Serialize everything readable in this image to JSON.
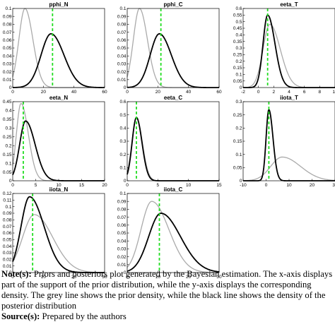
{
  "chart_data": [
    {
      "type": "line",
      "title": "pphi_N",
      "xlim": [
        0,
        60
      ],
      "ylim": [
        0,
        0.1
      ],
      "xticks": [
        0,
        20,
        40,
        60
      ],
      "yticks": [
        0,
        0.01,
        0.02,
        0.03,
        0.04,
        0.05,
        0.06,
        0.07,
        0.08,
        0.09,
        0.1
      ],
      "series": [
        {
          "color": "#aaaaaa",
          "dist": {
            "mode": 8,
            "sd": 4,
            "skew": 1.3,
            "peak": 0.1
          }
        },
        {
          "color": "#000000",
          "dist": {
            "mode": 25,
            "sd": 6.5,
            "skew": 1.3,
            "peak": 0.068
          }
        }
      ],
      "vline": 26
    },
    {
      "type": "line",
      "title": "pphi_C",
      "xlim": [
        0,
        60
      ],
      "ylim": [
        0,
        0.1
      ],
      "xticks": [
        0,
        20,
        40,
        60
      ],
      "yticks": [
        0,
        0.01,
        0.02,
        0.03,
        0.04,
        0.05,
        0.06,
        0.07,
        0.08,
        0.09,
        0.1
      ],
      "series": [
        {
          "color": "#aaaaaa",
          "dist": {
            "mode": 8,
            "sd": 4,
            "skew": 1.3,
            "peak": 0.1
          }
        },
        {
          "color": "#000000",
          "dist": {
            "mode": 21,
            "sd": 6,
            "skew": 1.3,
            "peak": 0.068
          }
        }
      ],
      "vline": 22
    },
    {
      "type": "line",
      "title": "eeta_T",
      "xlim": [
        -2,
        10
      ],
      "ylim": [
        0,
        0.6
      ],
      "xticks": [
        -2,
        0,
        2,
        4,
        6,
        8,
        10
      ],
      "yticks": [
        0,
        0.05,
        0.1,
        0.15,
        0.2,
        0.25,
        0.3,
        0.35,
        0.4,
        0.45,
        0.5,
        0.55,
        0.6
      ],
      "series": [
        {
          "color": "#aaaaaa",
          "dist": {
            "mode": 1.5,
            "sd": 0.9,
            "skew": 1.5,
            "peak": 0.48
          }
        },
        {
          "color": "#000000",
          "dist": {
            "mode": 1.2,
            "sd": 0.6,
            "skew": 1.6,
            "peak": 0.55
          }
        }
      ],
      "vline": 1.2
    },
    {
      "type": "line",
      "title": "eeta_N",
      "xlim": [
        0,
        20
      ],
      "ylim": [
        0,
        0.45
      ],
      "xticks": [
        0,
        5,
        10,
        15,
        20
      ],
      "yticks": [
        0,
        0.05,
        0.1,
        0.15,
        0.2,
        0.25,
        0.3,
        0.35,
        0.4,
        0.45
      ],
      "series": [
        {
          "color": "#aaaaaa",
          "dist": {
            "mode": 1.8,
            "sd": 1,
            "skew": 1.6,
            "peak": 0.44
          }
        },
        {
          "color": "#000000",
          "dist": {
            "mode": 2.8,
            "sd": 1.3,
            "skew": 1.6,
            "peak": 0.34
          }
        }
      ],
      "vline": 2.3
    },
    {
      "type": "line",
      "title": "eeta_C",
      "xlim": [
        0,
        15
      ],
      "ylim": [
        0,
        0.6
      ],
      "xticks": [
        0,
        5,
        10,
        15
      ],
      "yticks": [
        0,
        0.1,
        0.2,
        0.3,
        0.4,
        0.5,
        0.6
      ],
      "series": [
        {
          "color": "#aaaaaa",
          "dist": {
            "mode": 1.5,
            "sd": 0.75,
            "skew": 1.3,
            "peak": 0.48
          }
        },
        {
          "color": "#000000",
          "dist": {
            "mode": 1.5,
            "sd": 0.7,
            "skew": 1.3,
            "peak": 0.48
          }
        }
      ],
      "vline": 1.5
    },
    {
      "type": "line",
      "title": "iiota_T",
      "xlim": [
        -10,
        30
      ],
      "ylim": [
        0,
        0.3
      ],
      "xticks": [
        -10,
        0,
        10,
        20,
        30
      ],
      "yticks": [
        0,
        0.05,
        0.1,
        0.15,
        0.2,
        0.25,
        0.3
      ],
      "series": [
        {
          "color": "#aaaaaa",
          "dist": {
            "mode": 7,
            "sd": 5,
            "skew": 1.6,
            "peak": 0.09
          }
        },
        {
          "color": "#000000",
          "dist": {
            "mode": 1.2,
            "sd": 1.2,
            "skew": 1.5,
            "peak": 0.27
          }
        }
      ],
      "vline": 1.2
    },
    {
      "type": "line",
      "title": "iiota_N",
      "xlim": [
        0,
        30
      ],
      "ylim": [
        0,
        0.12
      ],
      "xticks": [
        0,
        10,
        20,
        30
      ],
      "yticks": [
        0,
        0.01,
        0.02,
        0.03,
        0.04,
        0.05,
        0.06,
        0.07,
        0.08,
        0.09,
        0.1,
        0.11,
        0.12
      ],
      "series": [
        {
          "color": "#aaaaaa",
          "dist": {
            "mode": 7,
            "sd": 3.8,
            "skew": 1.6,
            "peak": 0.088
          }
        },
        {
          "color": "#000000",
          "dist": {
            "mode": 5.5,
            "sd": 2.8,
            "skew": 1.7,
            "peak": 0.115
          }
        }
      ],
      "vline": 6.5
    },
    {
      "type": "line",
      "title": "iiota_C",
      "xlim": [
        0,
        30
      ],
      "ylim": [
        0,
        0.1
      ],
      "xticks": [
        0,
        10,
        20,
        30
      ],
      "yticks": [
        0,
        0.01,
        0.02,
        0.03,
        0.04,
        0.05,
        0.06,
        0.07,
        0.08,
        0.09,
        0.1
      ],
      "series": [
        {
          "color": "#aaaaaa",
          "dist": {
            "mode": 8,
            "sd": 3.5,
            "skew": 1.6,
            "peak": 0.09
          }
        },
        {
          "color": "#000000",
          "dist": {
            "mode": 11,
            "sd": 4,
            "skew": 1.6,
            "peak": 0.075
          }
        }
      ],
      "vline": 10.5
    }
  ],
  "style": {
    "vline_color": "#22dd22",
    "prior_color": "#aaaaaa",
    "posterior_color": "#000000"
  },
  "caption": {
    "note_label": "Note(s):",
    "note_text": " Priors and posteriors plot generated by the Bayesian estimation. The x-axis displays part of the support of the prior distribution, while the y-axis displays the corresponding density. The grey line shows the prior density, while the black line shows the density of the posterior distribution",
    "source_label": "Source(s):",
    "source_text": " Prepared by the authors"
  }
}
